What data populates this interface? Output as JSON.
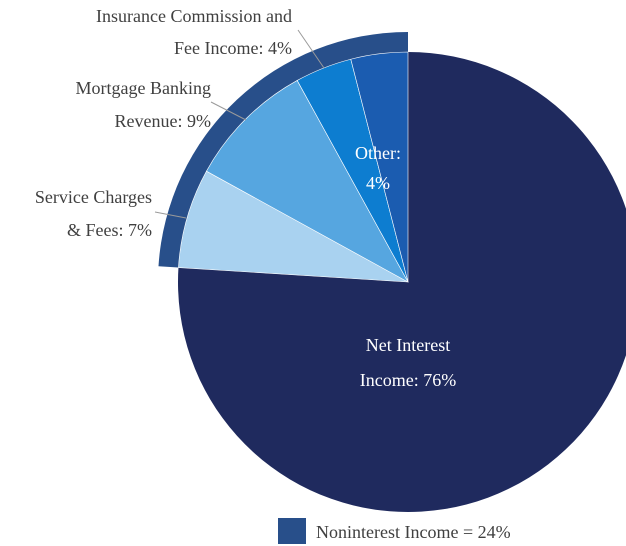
{
  "chart_data": {
    "type": "pie",
    "slices": [
      {
        "label_lines": [
          "Net Interest",
          "Income: 76%"
        ],
        "value": 76,
        "color": "#1f2a5e",
        "label_position": "inside"
      },
      {
        "label_lines": [
          "Service Charges",
          "& Fees: 7%"
        ],
        "value": 7,
        "color": "#a9d2f0",
        "label_position": "outside"
      },
      {
        "label_lines": [
          "Mortgage Banking",
          "Revenue: 9%"
        ],
        "value": 9,
        "color": "#56a6e0",
        "label_position": "outside"
      },
      {
        "label_lines": [
          "Insurance Commission and",
          "Fee Income: 4%"
        ],
        "value": 4,
        "color": "#0d7dd0",
        "label_position": "outside"
      },
      {
        "label_lines": [
          "Other:",
          "4%"
        ],
        "value": 4,
        "color": "#1b5cb0",
        "label_position": "inside"
      }
    ],
    "noninterest_ring_color": "#284f8a",
    "legend": {
      "text": "Noninterest Income = 24%",
      "color": "#284f8a",
      "placement": "bottom"
    }
  }
}
